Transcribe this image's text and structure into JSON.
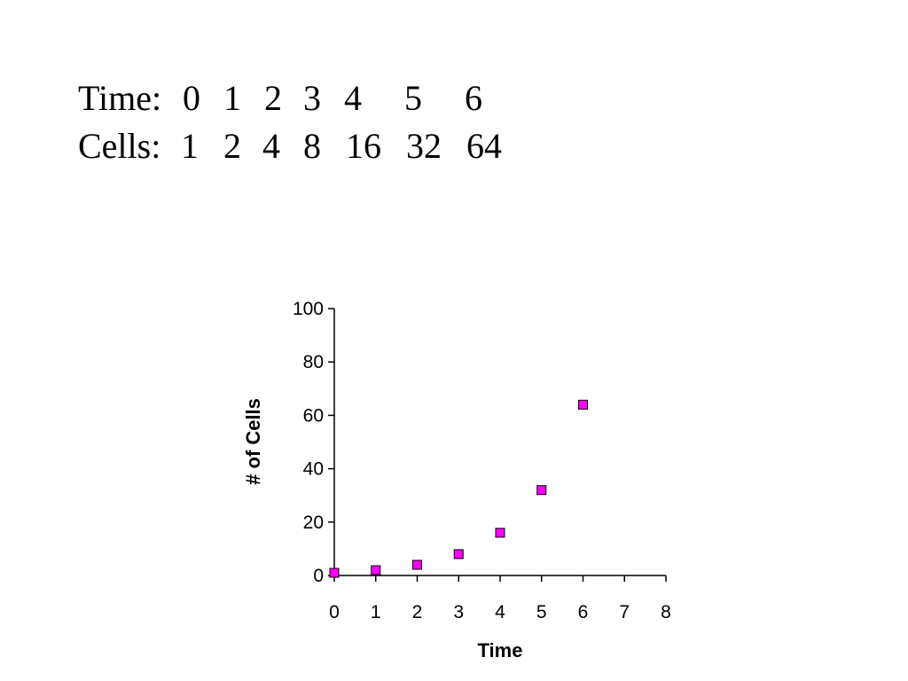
{
  "data_table": {
    "rows": [
      {
        "label": "Time:",
        "cells": [
          "0",
          "1",
          "2",
          "3",
          "4",
          "5",
          "6"
        ]
      },
      {
        "label": "Cells:",
        "cells": [
          "1",
          "2",
          "4",
          "8",
          "16",
          "32",
          "64"
        ]
      }
    ]
  },
  "chart_data": {
    "type": "scatter",
    "title": "",
    "xlabel": "Time",
    "ylabel": "# of Cells",
    "xlim": [
      0,
      8
    ],
    "ylim": [
      0,
      100
    ],
    "x_ticks": [
      0,
      1,
      2,
      3,
      4,
      5,
      6,
      7,
      8
    ],
    "y_ticks": [
      0,
      20,
      40,
      60,
      80,
      100
    ],
    "grid": false,
    "legend": "none",
    "series": [
      {
        "marker": "square",
        "color": "#ff00ff",
        "points": [
          {
            "x": 0,
            "y": 1
          },
          {
            "x": 1,
            "y": 2
          },
          {
            "x": 2,
            "y": 4
          },
          {
            "x": 3,
            "y": 8
          },
          {
            "x": 4,
            "y": 16
          },
          {
            "x": 5,
            "y": 32
          },
          {
            "x": 6,
            "y": 64
          }
        ]
      }
    ]
  }
}
